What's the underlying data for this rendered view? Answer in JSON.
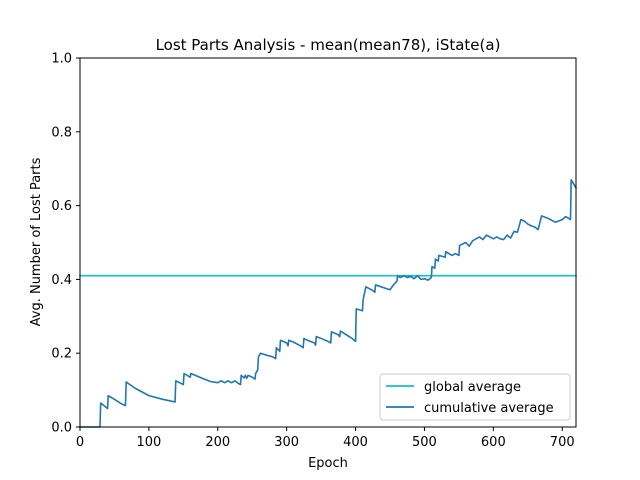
{
  "chart_data": {
    "type": "line",
    "title": "Lost Parts Analysis - mean(mean78), iState(a)",
    "xlabel": "Epoch",
    "ylabel": "Avg. Number of Lost Parts",
    "xlim": [
      0,
      720
    ],
    "ylim": [
      0,
      1.0
    ],
    "xticks": [
      0,
      100,
      200,
      300,
      400,
      500,
      600,
      700
    ],
    "yticks": [
      0.0,
      0.2,
      0.4,
      0.6,
      0.8,
      1.0
    ],
    "xtick_labels": [
      "0",
      "100",
      "200",
      "300",
      "400",
      "500",
      "600",
      "700"
    ],
    "ytick_labels": [
      "0.0",
      "0.2",
      "0.4",
      "0.6",
      "0.8",
      "1.0"
    ],
    "grid": false,
    "legend_position": "lower-right",
    "series": [
      {
        "name": "global average",
        "color": "#17becf",
        "kind": "hline",
        "x": [
          0,
          720
        ],
        "y": [
          0.41,
          0.41
        ]
      },
      {
        "name": "cumulative average",
        "color": "#1f77b4",
        "kind": "line",
        "x": [
          0,
          28,
          29,
          30,
          40,
          41,
          50,
          60,
          66,
          67,
          80,
          100,
          120,
          138,
          139,
          150,
          151,
          160,
          161,
          170,
          180,
          190,
          200,
          205,
          210,
          215,
          220,
          225,
          230,
          233,
          234,
          238,
          240,
          242,
          244,
          250,
          254,
          255,
          258,
          259,
          262,
          270,
          280,
          284,
          285,
          290,
          291,
          300,
          302,
          303,
          310,
          320,
          324,
          325,
          330,
          340,
          342,
          343,
          350,
          360,
          364,
          365,
          375,
          377,
          378,
          395,
          398,
          400,
          401,
          410,
          411,
          415,
          425,
          428,
          429,
          440,
          445,
          450,
          455,
          460,
          461,
          465,
          470,
          475,
          480,
          485,
          490,
          495,
          500,
          505,
          510,
          511,
          515,
          516,
          520,
          521,
          530,
          531,
          540,
          545,
          550,
          551,
          560,
          565,
          570,
          580,
          585,
          590,
          595,
          600,
          605,
          610,
          615,
          620,
          625,
          630,
          635,
          640,
          645,
          650,
          655,
          660,
          665,
          670,
          680,
          690,
          700,
          705,
          710,
          712,
          713,
          720
        ],
        "y": [
          0.0,
          0.0,
          0.0,
          0.065,
          0.05,
          0.085,
          0.075,
          0.063,
          0.058,
          0.122,
          0.105,
          0.085,
          0.075,
          0.068,
          0.125,
          0.115,
          0.145,
          0.135,
          0.145,
          0.138,
          0.13,
          0.123,
          0.12,
          0.125,
          0.12,
          0.125,
          0.12,
          0.125,
          0.118,
          0.115,
          0.14,
          0.133,
          0.14,
          0.132,
          0.14,
          0.135,
          0.13,
          0.145,
          0.155,
          0.19,
          0.2,
          0.195,
          0.19,
          0.185,
          0.215,
          0.205,
          0.235,
          0.228,
          0.22,
          0.235,
          0.23,
          0.22,
          0.215,
          0.24,
          0.235,
          0.228,
          0.222,
          0.245,
          0.24,
          0.232,
          0.228,
          0.258,
          0.25,
          0.245,
          0.26,
          0.24,
          0.235,
          0.232,
          0.32,
          0.315,
          0.345,
          0.38,
          0.37,
          0.365,
          0.385,
          0.378,
          0.375,
          0.372,
          0.385,
          0.395,
          0.41,
          0.405,
          0.41,
          0.405,
          0.408,
          0.402,
          0.41,
          0.4,
          0.402,
          0.398,
          0.405,
          0.435,
          0.43,
          0.455,
          0.45,
          0.465,
          0.46,
          0.475,
          0.465,
          0.47,
          0.465,
          0.492,
          0.5,
          0.49,
          0.505,
          0.515,
          0.508,
          0.52,
          0.515,
          0.51,
          0.515,
          0.51,
          0.508,
          0.52,
          0.512,
          0.53,
          0.528,
          0.562,
          0.558,
          0.55,
          0.545,
          0.542,
          0.535,
          0.572,
          0.565,
          0.555,
          0.562,
          0.57,
          0.565,
          0.562,
          0.67,
          0.648
        ]
      }
    ]
  }
}
